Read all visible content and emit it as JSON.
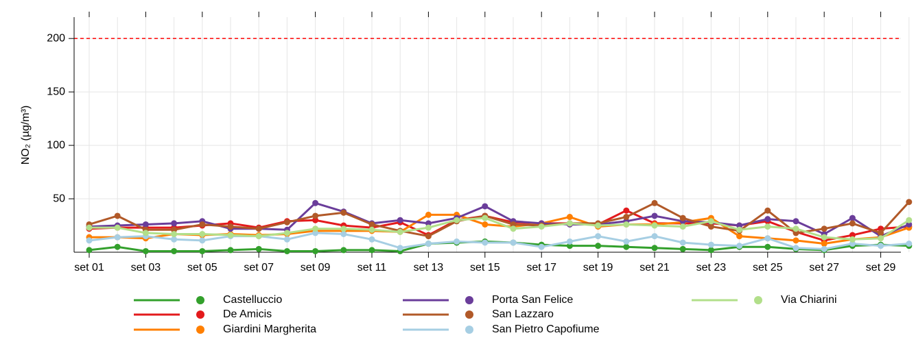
{
  "chart_data": {
    "type": "line",
    "y_label": "NO₂ (µg/m³)",
    "categories": [
      "set 01",
      null,
      "set 03",
      null,
      "set 05",
      null,
      "set 07",
      null,
      "set 09",
      null,
      "set 11",
      null,
      "set 13",
      null,
      "set 15",
      null,
      "set 17",
      null,
      "set 19",
      null,
      "set 21",
      null,
      "set 23",
      null,
      "set 25",
      null,
      "set 27",
      null,
      "set 29",
      null
    ],
    "ylim": [
      0,
      220
    ],
    "yticks": [
      50,
      100,
      150,
      200
    ],
    "grid": true,
    "threshold": 200,
    "threshold_color": "#ff0000",
    "series": [
      {
        "name": "Castelluccio",
        "color": "#33a02c",
        "values": [
          2,
          5,
          1,
          1,
          1,
          2,
          3,
          1,
          1,
          2,
          2,
          1,
          8,
          9,
          10,
          9,
          7,
          6,
          6,
          5,
          4,
          3,
          2,
          5,
          5,
          3,
          2,
          6,
          7,
          6
        ]
      },
      {
        "name": "De Amicis",
        "color": "#e31a1c",
        "values": [
          22,
          23,
          23,
          23,
          25,
          27,
          23,
          29,
          30,
          25,
          23,
          28,
          16,
          30,
          34,
          28,
          27,
          27,
          26,
          39,
          27,
          27,
          27,
          25,
          29,
          19,
          11,
          16,
          22,
          24
        ]
      },
      {
        "name": "Giardini Margherita",
        "color": "#ff7f00",
        "values": [
          14,
          14,
          13,
          17,
          16,
          17,
          16,
          17,
          20,
          20,
          20,
          19,
          35,
          35,
          26,
          24,
          27,
          33,
          24,
          26,
          26,
          28,
          32,
          15,
          13,
          11,
          8,
          12,
          14,
          23
        ]
      },
      {
        "name": "Porta San Felice",
        "color": "#6a3d9a",
        "values": [
          24,
          25,
          26,
          27,
          29,
          22,
          22,
          21,
          46,
          38,
          27,
          30,
          27,
          32,
          43,
          29,
          27,
          26,
          26,
          29,
          34,
          29,
          28,
          25,
          31,
          29,
          17,
          32,
          15,
          26
        ]
      },
      {
        "name": "San Lazzaro",
        "color": "#b15928",
        "values": [
          26,
          34,
          21,
          21,
          26,
          24,
          22,
          28,
          34,
          37,
          26,
          20,
          15,
          29,
          34,
          26,
          25,
          27,
          27,
          33,
          46,
          32,
          24,
          20,
          39,
          18,
          22,
          27,
          18,
          47
        ]
      },
      {
        "name": "San Pietro Capofiume",
        "color": "#a6cee3",
        "values": [
          11,
          14,
          15,
          12,
          11,
          15,
          15,
          12,
          18,
          17,
          12,
          4,
          8,
          10,
          9,
          9,
          5,
          10,
          15,
          10,
          15,
          9,
          7,
          6,
          13,
          4,
          3,
          8,
          6,
          8
        ]
      },
      {
        "name": "Via Chiarini",
        "color": "#b2df8a",
        "values": [
          23,
          23,
          18,
          17,
          17,
          16,
          15,
          18,
          22,
          22,
          21,
          19,
          23,
          30,
          32,
          22,
          24,
          27,
          25,
          26,
          25,
          24,
          29,
          21,
          24,
          22,
          14,
          12,
          13,
          30
        ]
      }
    ]
  }
}
